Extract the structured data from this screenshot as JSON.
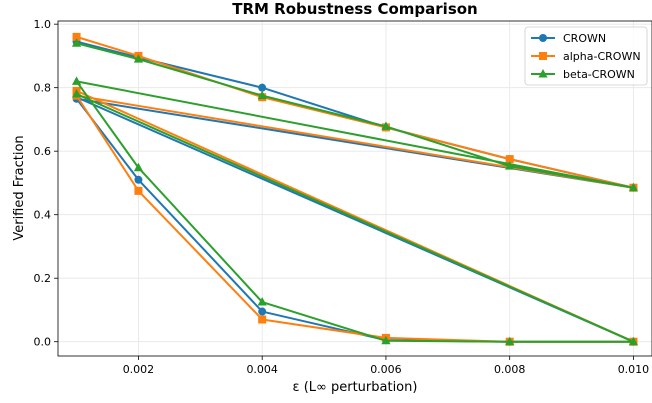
{
  "chart_data": {
    "type": "line",
    "title": "TRM Robustness Comparison",
    "xlabel": "ε (L∞ perturbation)",
    "ylabel": "Verified Fraction",
    "xlim": [
      0.0007,
      0.0103
    ],
    "ylim": [
      -0.045,
      1.01
    ],
    "xticks": [
      0.002,
      0.004,
      0.006,
      0.008,
      0.01
    ],
    "xtick_labels": [
      "0.002",
      "0.004",
      "0.006",
      "0.008",
      "0.010"
    ],
    "yticks": [
      0.0,
      0.2,
      0.4,
      0.6,
      0.8,
      1.0
    ],
    "ytick_labels": [
      "0.0",
      "0.2",
      "0.4",
      "0.6",
      "0.8",
      "1.0"
    ],
    "grid": true,
    "legend_position": "top-right",
    "series": [
      {
        "name": "CROWN",
        "color": "#1f77b4",
        "marker": "circle",
        "x": [
          0.001,
          0.002,
          0.004,
          0.006,
          0.008,
          0.01,
          0.001,
          0.002,
          0.004,
          0.006,
          0.008,
          0.01,
          0.001
        ],
        "y": [
          0.945,
          0.895,
          0.8,
          0.675,
          0.575,
          0.485,
          0.765,
          0.51,
          0.095,
          0.005,
          0.0,
          0.0,
          0.77
        ]
      },
      {
        "name": "alpha-CROWN",
        "color": "#ff7f0e",
        "marker": "square",
        "x": [
          0.001,
          0.002,
          0.004,
          0.006,
          0.008,
          0.01,
          0.001,
          0.002,
          0.004,
          0.006,
          0.008,
          0.01,
          0.001
        ],
        "y": [
          0.96,
          0.9,
          0.77,
          0.675,
          0.575,
          0.485,
          0.775,
          0.475,
          0.07,
          0.012,
          0.0,
          0.0,
          0.79
        ]
      },
      {
        "name": "beta-CROWN",
        "color": "#2ca02c",
        "marker": "triangle",
        "x": [
          0.001,
          0.002,
          0.004,
          0.006,
          0.008,
          0.01,
          0.001,
          0.002,
          0.004,
          0.006,
          0.008,
          0.01,
          0.001
        ],
        "y": [
          0.94,
          0.89,
          0.775,
          0.678,
          0.553,
          0.485,
          0.82,
          0.548,
          0.125,
          0.003,
          0.0,
          0.0,
          0.78
        ]
      }
    ]
  }
}
